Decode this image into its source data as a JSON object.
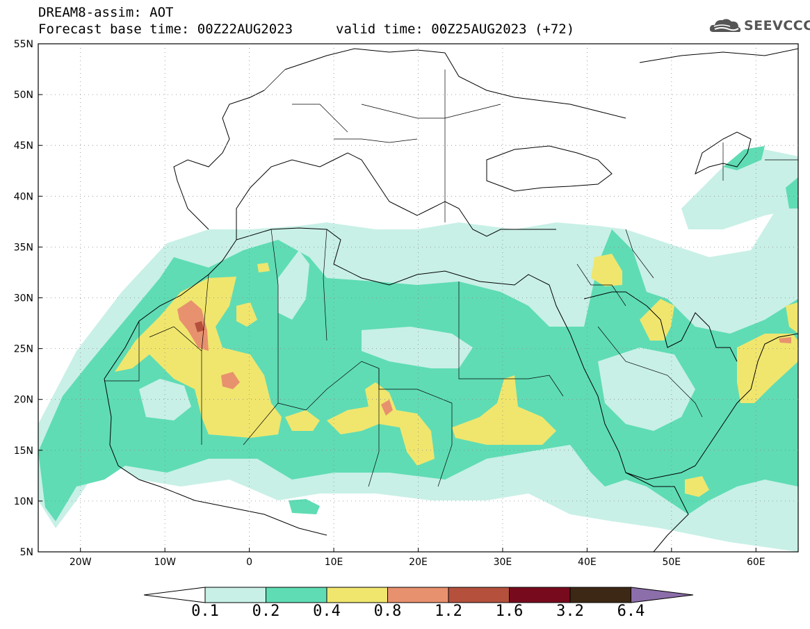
{
  "header": {
    "title": "DREAM8-assim: AOT",
    "base_time": "Forecast base time: 00Z22AUG2023",
    "valid_time": "valid time: 00Z25AUG2023 (+72)"
  },
  "logo": {
    "text": "SEEVCCC",
    "icon": "cloud-logo-icon"
  },
  "map": {
    "region": "North Africa / Middle East",
    "projection": "lat-lon",
    "lon_range": [
      -25,
      65
    ],
    "lat_range": [
      5,
      55
    ],
    "lon_ticks": [
      "20W",
      "10W",
      "0",
      "10E",
      "20E",
      "30E",
      "40E",
      "50E",
      "60E"
    ],
    "lat_ticks": [
      "55N",
      "50N",
      "45N",
      "40N",
      "35N",
      "30N",
      "25N",
      "20N",
      "15N",
      "10N",
      "5N"
    ]
  },
  "colorbar": {
    "levels": [
      "0.1",
      "0.2",
      "0.4",
      "0.8",
      "1.2",
      "1.6",
      "3.2",
      "6.4"
    ],
    "colors": [
      "#c8f0e6",
      "#5fdcb4",
      "#f0e66e",
      "#e8916e",
      "#b4503c",
      "#780a1e",
      "#3c2814",
      "#8c6eaa"
    ]
  }
}
